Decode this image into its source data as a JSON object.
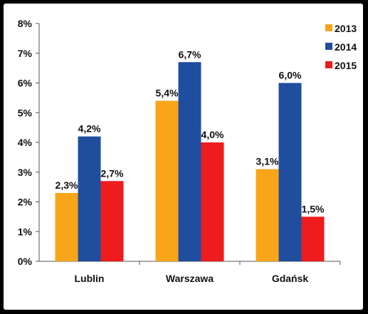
{
  "chart_data": {
    "type": "bar",
    "categories": [
      "Lublin",
      "Warszawa",
      "Gdańsk"
    ],
    "series": [
      {
        "name": "2013",
        "color": "#F9A51A",
        "values": [
          2.3,
          5.4,
          3.1
        ],
        "labels": [
          "2,3%",
          "5,4%",
          "3,1%"
        ]
      },
      {
        "name": "2014",
        "color": "#1F4E9E",
        "values": [
          4.2,
          6.7,
          6.0
        ],
        "labels": [
          "4,2%",
          "6,7%",
          "6,0%"
        ]
      },
      {
        "name": "2015",
        "color": "#EE1C1C",
        "values": [
          2.7,
          4.0,
          1.5
        ],
        "labels": [
          "2,7%",
          "4,0%",
          "1,5%"
        ]
      }
    ],
    "ylim": [
      0,
      8
    ],
    "yticks": [
      0,
      1,
      2,
      3,
      4,
      5,
      6,
      7,
      8
    ],
    "ytick_labels": [
      "0%",
      "1%",
      "2%",
      "3%",
      "4%",
      "5%",
      "6%",
      "7%",
      "8%"
    ],
    "grid": false,
    "legend": "top-right"
  }
}
